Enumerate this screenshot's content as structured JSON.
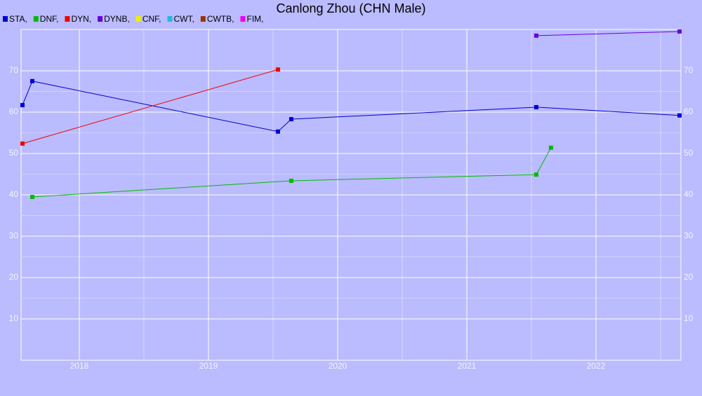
{
  "chart_data": {
    "type": "line",
    "title": "Canlong Zhou (CHN Male)",
    "xlim": [
      2017.549,
      2022.658
    ],
    "xticks": [
      2018,
      2019,
      2020,
      2021,
      2022
    ],
    "ylim": [
      0,
      80
    ],
    "yticks": [
      10,
      20,
      30,
      40,
      50,
      60,
      70
    ],
    "grid": true,
    "minor_grid": true,
    "right_axis_labels": true,
    "series": [
      {
        "name": "STA,",
        "color": "#0000cc",
        "x": [
          2017.56,
          2017.636,
          2019.538,
          2019.641,
          2021.538,
          2022.647
        ],
        "values": [
          61.7,
          67.5,
          55.3,
          58.3,
          61.2,
          59.2
        ]
      },
      {
        "name": "DNF,",
        "color": "#00bb00",
        "x": [
          2017.636,
          2019.641,
          2021.538,
          2021.652
        ],
        "values": [
          39.5,
          43.4,
          44.9,
          51.4
        ]
      },
      {
        "name": "DYN,",
        "color": "#ee0000",
        "x": [
          2017.56,
          2019.538
        ],
        "values": [
          52.4,
          70.3
        ]
      },
      {
        "name": "DYNB,",
        "color": "#6600dd",
        "x": [
          2021.538,
          2022.647
        ],
        "values": [
          78.5,
          79.5
        ]
      },
      {
        "name": "CNF,",
        "color": "#eeee00",
        "x": [],
        "values": []
      },
      {
        "name": "CWT,",
        "color": "#22bbdd",
        "x": [],
        "values": []
      },
      {
        "name": "CWTB,",
        "color": "#993300",
        "x": [],
        "values": []
      },
      {
        "name": "FIM,",
        "color": "#ee00ee",
        "x": [],
        "values": []
      }
    ]
  }
}
